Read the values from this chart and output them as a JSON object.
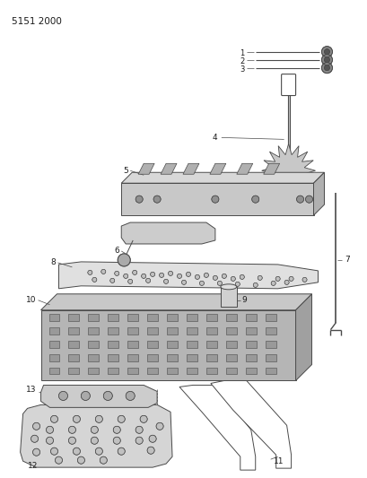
{
  "title": "5151 2000",
  "bg_color": "#ffffff",
  "line_color": "#4a4a4a",
  "fill_light": "#d4d4d4",
  "fill_mid": "#b8b8b8",
  "fill_dark": "#9a9a9a",
  "text_color": "#1a1a1a",
  "fig_width": 4.1,
  "fig_height": 5.33,
  "dpi": 100
}
